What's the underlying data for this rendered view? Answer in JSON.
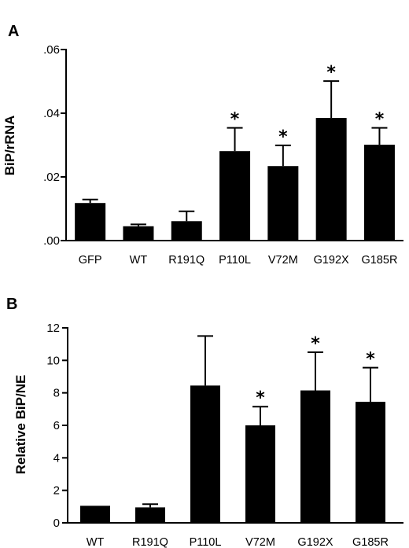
{
  "chart_data": [
    {
      "type": "bar",
      "panel": "A",
      "ylabel": "BiP/rRNA",
      "ylim": [
        0,
        0.06
      ],
      "yticks": [
        0,
        0.02,
        0.04,
        0.06
      ],
      "ytick_labels": [
        ".00",
        ".02",
        ".04",
        ".06"
      ],
      "categories": [
        "GFP",
        "WT",
        "R191Q",
        "P110L",
        "V72M",
        "G192X",
        "G185R"
      ],
      "values": [
        0.0118,
        0.0045,
        0.0061,
        0.0281,
        0.0234,
        0.0385,
        0.0301
      ],
      "errors": [
        0.0011,
        0.0006,
        0.0031,
        0.0073,
        0.0065,
        0.0116,
        0.0053
      ],
      "significant": [
        false,
        false,
        false,
        true,
        true,
        true,
        true
      ],
      "significance_mark": "*"
    },
    {
      "type": "bar",
      "panel": "B",
      "ylabel": "Relative BiP/NE",
      "ylim": [
        0,
        12
      ],
      "yticks": [
        0,
        2,
        4,
        6,
        8,
        10,
        12
      ],
      "ytick_labels": [
        "0",
        "2",
        "4",
        "6",
        "8",
        "10",
        "12"
      ],
      "categories": [
        "WT",
        "R191Q",
        "P110L",
        "V72M",
        "G192X",
        "G185R"
      ],
      "values": [
        1.05,
        0.95,
        8.45,
        6.0,
        8.15,
        7.45
      ],
      "errors": [
        0.0,
        0.2,
        3.05,
        1.15,
        2.35,
        2.1
      ],
      "significant": [
        false,
        false,
        false,
        true,
        true,
        true
      ],
      "significance_mark": "*"
    }
  ]
}
